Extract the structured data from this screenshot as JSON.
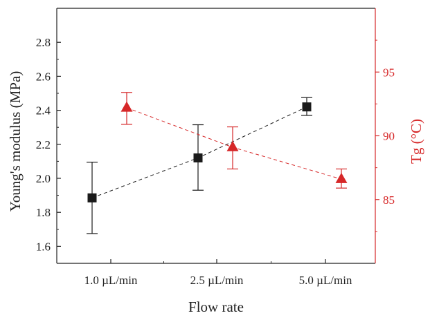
{
  "chart_data": {
    "type": "scatter",
    "categories": [
      "1.0 µL/min",
      "2.5 µL/min",
      "5.0 µL/min"
    ],
    "xlabel": "Flow rate",
    "ylabel": "Young's modulus (MPa)",
    "y2label": "Tg (°C)",
    "ylim": [
      1.5,
      3.0
    ],
    "y2lim": [
      80,
      100
    ],
    "yticks": [
      "1.6",
      "1.8",
      "2.0",
      "2.2",
      "2.4",
      "2.6",
      "2.8"
    ],
    "y2ticks": [
      "85",
      "90",
      "95"
    ],
    "grid": false,
    "legend": "none",
    "series": [
      {
        "axis": "left",
        "marker": "square",
        "color": "#1a1a1a",
        "linestyle": "dashed",
        "values": [
          1.885,
          2.12,
          2.42
        ],
        "errors": [
          [
            1.675,
            2.095
          ],
          [
            1.93,
            2.315
          ],
          [
            2.37,
            2.475
          ]
        ]
      },
      {
        "axis": "right",
        "marker": "triangle",
        "color": "#d62728",
        "linestyle": "dashed",
        "values": [
          92.2,
          89.1,
          86.6
        ],
        "errors": [
          [
            90.9,
            93.4
          ],
          [
            87.4,
            90.7
          ],
          [
            85.9,
            87.4
          ]
        ]
      }
    ]
  }
}
